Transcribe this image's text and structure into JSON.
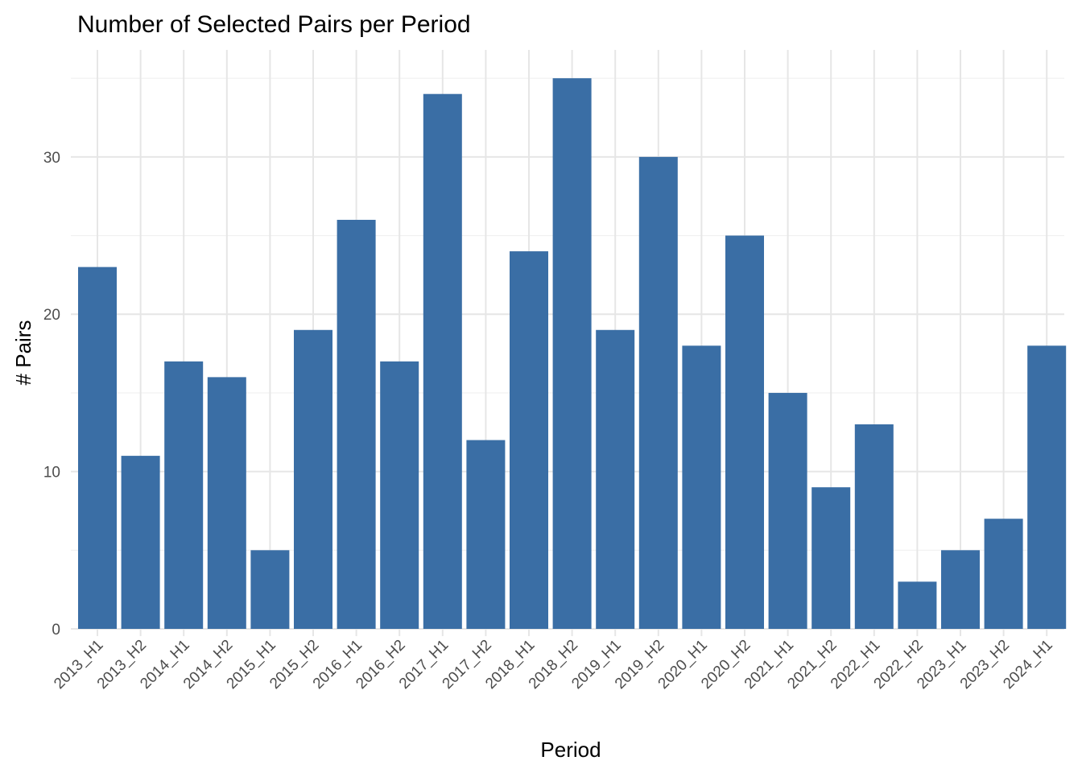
{
  "chart_data": {
    "type": "bar",
    "title": "Number of Selected Pairs per Period",
    "xlabel": "Period",
    "ylabel": "# Pairs",
    "categories": [
      "2013_H1",
      "2013_H2",
      "2014_H1",
      "2014_H2",
      "2015_H1",
      "2015_H2",
      "2016_H1",
      "2016_H2",
      "2017_H1",
      "2017_H2",
      "2018_H1",
      "2018_H2",
      "2019_H1",
      "2019_H2",
      "2020_H1",
      "2020_H2",
      "2021_H1",
      "2021_H2",
      "2022_H1",
      "2022_H2",
      "2023_H1",
      "2023_H2",
      "2024_H1"
    ],
    "values": [
      23,
      11,
      17,
      16,
      5,
      19,
      26,
      17,
      34,
      12,
      24,
      35,
      19,
      30,
      18,
      25,
      15,
      9,
      13,
      3,
      5,
      7,
      18
    ],
    "ylim": [
      0,
      36.8
    ],
    "yticks": [
      0,
      10,
      20,
      30
    ],
    "grid": true,
    "legend": "none",
    "bar_color": "#3a6ea5"
  }
}
